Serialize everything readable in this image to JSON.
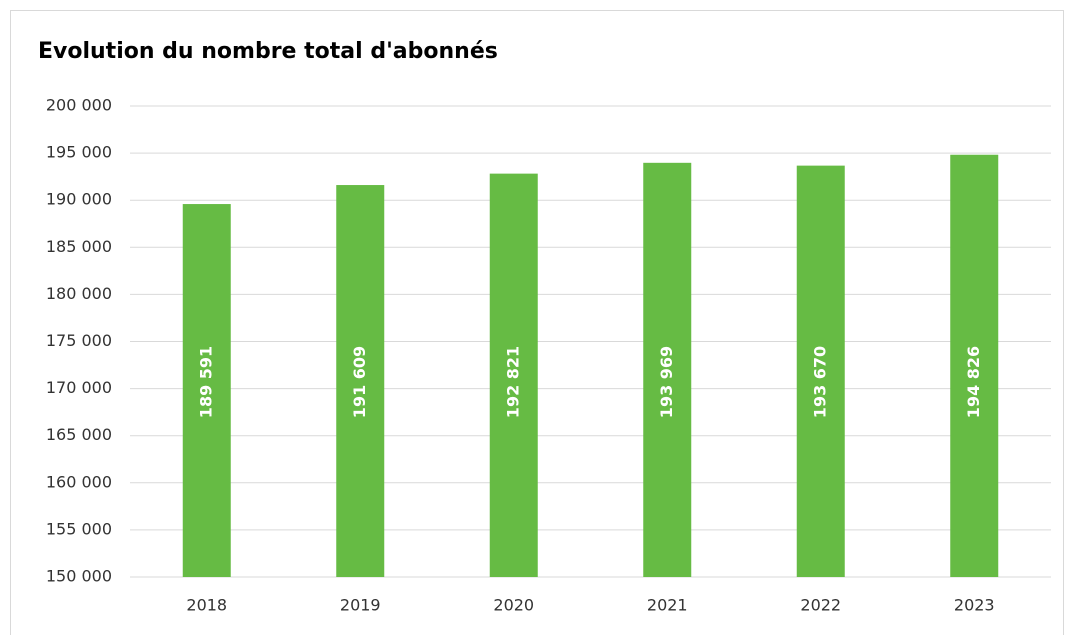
{
  "chart_data": {
    "type": "bar",
    "title": "Evolution du nombre total d'abonnés",
    "categories": [
      "2018",
      "2019",
      "2020",
      "2021",
      "2022",
      "2023"
    ],
    "values": [
      189591,
      191609,
      192821,
      193969,
      193670,
      194826
    ],
    "value_labels": [
      "189 591",
      "191 609",
      "192 821",
      "193 969",
      "193 670",
      "194 826"
    ],
    "color": "#66bb44",
    "ylim": [
      150000,
      200000
    ],
    "yticks": [
      {
        "value": 150000,
        "label": "150 000"
      },
      {
        "value": 155000,
        "label": "155 000"
      },
      {
        "value": 160000,
        "label": "160 000"
      },
      {
        "value": 165000,
        "label": "165 000"
      },
      {
        "value": 170000,
        "label": "170 000"
      },
      {
        "value": 175000,
        "label": "175 000"
      },
      {
        "value": 180000,
        "label": "180 000"
      },
      {
        "value": 185000,
        "label": "185 000"
      },
      {
        "value": 190000,
        "label": "190 000"
      },
      {
        "value": 195000,
        "label": "195 000"
      },
      {
        "value": 200000,
        "label": "200 000"
      }
    ],
    "grid": true
  }
}
